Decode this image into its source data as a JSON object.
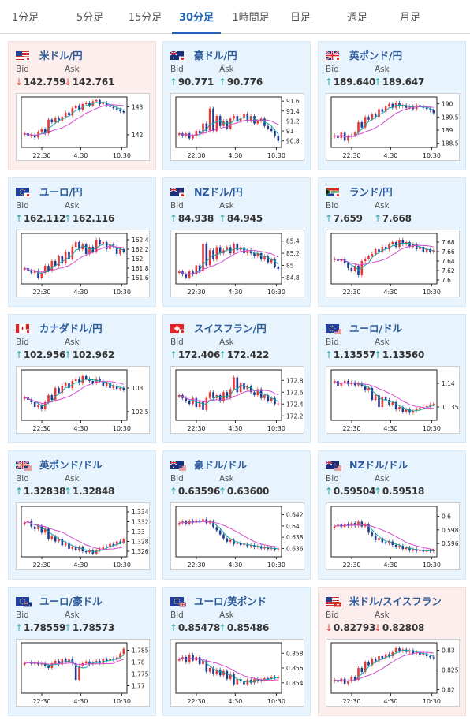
{
  "tabs": [
    {
      "label": "1分足",
      "active": false
    },
    {
      "label": "5分足",
      "active": false
    },
    {
      "label": "15分足",
      "active": false
    },
    {
      "label": "30分足",
      "active": true
    },
    {
      "label": "1時間足",
      "active": false
    },
    {
      "label": "日足",
      "active": false
    },
    {
      "label": "週足",
      "active": false
    },
    {
      "label": "月足",
      "active": false
    }
  ],
  "labels": {
    "bid": "Bid",
    "ask": "Ask",
    "up_arrow": "↑",
    "down_arrow": "↓"
  },
  "colors": {
    "up_candle": "#e53935",
    "down_candle": "#1f3a93",
    "ma_short": "#19a7a7",
    "ma_long": "#d24fd0",
    "tab_active": "#1f63b6",
    "card_up_bg": "#e8f4fd",
    "card_down_bg": "#fdeeee"
  },
  "x_ticks": [
    "22:30",
    "4:30",
    "10:30"
  ],
  "pairs": [
    {
      "name": "米ドル/円",
      "flags": [
        "us",
        "jp"
      ],
      "direction": "down",
      "bid": "142.759",
      "ask": "142.761",
      "y_ticks": [
        "143",
        "142"
      ],
      "ylim": [
        141.6,
        143.3
      ],
      "series": [
        142.05,
        141.95,
        142.0,
        141.9,
        142.1,
        142.2,
        142.05,
        142.55,
        142.45,
        142.6,
        142.5,
        142.65,
        142.8,
        142.7,
        142.95,
        143.05,
        142.9,
        143.1,
        143.15,
        143.05,
        143.2,
        143.25,
        143.1,
        143.15,
        143.05,
        143.0,
        142.95,
        142.9,
        142.85,
        142.8
      ]
    },
    {
      "name": "豪ドル/円",
      "flags": [
        "au",
        "jp"
      ],
      "direction": "up",
      "bid": "90.771",
      "ask": "90.776",
      "y_ticks": [
        "91.6",
        "91.4",
        "91.2",
        "91",
        "90.8"
      ],
      "ylim": [
        90.7,
        91.65
      ],
      "series": [
        90.95,
        90.9,
        90.95,
        90.85,
        90.9,
        91.0,
        90.95,
        91.15,
        91.0,
        91.45,
        91.0,
        91.3,
        91.1,
        91.2,
        91.05,
        91.25,
        91.3,
        91.2,
        91.25,
        91.35,
        91.2,
        91.3,
        91.15,
        91.2,
        91.25,
        91.1,
        91.05,
        91.0,
        90.9,
        90.8
      ]
    },
    {
      "name": "英ポンド/円",
      "flags": [
        "gb",
        "jp"
      ],
      "direction": "up",
      "bid": "189.640",
      "ask": "189.647",
      "y_ticks": [
        "190",
        "189.5",
        "189",
        "188.5"
      ],
      "ylim": [
        188.4,
        190.2
      ],
      "series": [
        188.8,
        188.7,
        188.9,
        188.6,
        188.75,
        188.8,
        188.9,
        189.3,
        189.1,
        189.5,
        189.4,
        189.6,
        189.5,
        189.8,
        189.7,
        189.9,
        190.0,
        189.85,
        190.05,
        189.9,
        189.95,
        189.85,
        189.9,
        189.8,
        189.95,
        189.9,
        189.85,
        189.8,
        189.75,
        189.65
      ]
    },
    {
      "name": "ユーロ/円",
      "flags": [
        "eu",
        "jp"
      ],
      "direction": "up",
      "bid": "162.112",
      "ask": "162.116",
      "y_ticks": [
        "162.4",
        "162.2",
        "162",
        "161.8",
        "161.6"
      ],
      "ylim": [
        161.5,
        162.5
      ],
      "series": [
        161.8,
        161.75,
        161.7,
        161.75,
        161.6,
        161.7,
        161.85,
        161.75,
        161.95,
        161.85,
        162.05,
        161.9,
        162.15,
        162.0,
        162.25,
        162.35,
        162.2,
        162.3,
        162.1,
        162.25,
        162.15,
        162.4,
        162.3,
        162.35,
        162.2,
        162.3,
        162.25,
        162.1,
        162.2,
        162.15
      ]
    },
    {
      "name": "NZドル/円",
      "flags": [
        "nz",
        "jp"
      ],
      "direction": "up",
      "bid": "84.938",
      "ask": "84.945",
      "y_ticks": [
        "85.4",
        "85.2",
        "85",
        "84.8"
      ],
      "ylim": [
        84.72,
        85.5
      ],
      "series": [
        84.9,
        84.85,
        84.8,
        84.9,
        84.85,
        85.0,
        84.9,
        85.35,
        85.0,
        85.25,
        85.1,
        85.3,
        85.2,
        85.25,
        85.3,
        85.2,
        85.35,
        85.25,
        85.3,
        85.2,
        85.25,
        85.2,
        85.15,
        85.2,
        85.1,
        85.15,
        85.05,
        85.1,
        84.98,
        84.94
      ]
    },
    {
      "name": "ランド/円",
      "flags": [
        "za",
        "jp"
      ],
      "direction": "up",
      "bid": "7.659",
      "ask": "7.668",
      "y_ticks": [
        "7.68",
        "7.66",
        "7.64",
        "7.62",
        "7.6"
      ],
      "ylim": [
        7.595,
        7.695
      ],
      "series": [
        7.645,
        7.64,
        7.645,
        7.635,
        7.625,
        7.62,
        7.63,
        7.61,
        7.64,
        7.645,
        7.65,
        7.655,
        7.665,
        7.66,
        7.67,
        7.665,
        7.675,
        7.68,
        7.67,
        7.685,
        7.675,
        7.68,
        7.67,
        7.675,
        7.665,
        7.67,
        7.66,
        7.665,
        7.66,
        7.662
      ]
    },
    {
      "name": "カナダドル/円",
      "flags": [
        "ca",
        "jp"
      ],
      "direction": "up",
      "bid": "102.956",
      "ask": "102.962",
      "y_ticks": [
        "103",
        "102.5"
      ],
      "ylim": [
        102.35,
        103.35
      ],
      "series": [
        102.8,
        102.75,
        102.7,
        102.6,
        102.65,
        102.55,
        102.7,
        102.85,
        102.75,
        103.0,
        102.9,
        103.05,
        103.1,
        103.0,
        103.15,
        103.2,
        103.1,
        103.25,
        103.2,
        103.15,
        103.1,
        103.2,
        103.15,
        103.05,
        103.1,
        103.0,
        103.05,
        102.98,
        103.0,
        102.96
      ]
    },
    {
      "name": "スイスフラン/円",
      "flags": [
        "ch",
        "jp"
      ],
      "direction": "up",
      "bid": "172.406",
      "ask": "172.422",
      "y_ticks": [
        "172.8",
        "172.6",
        "172.4",
        "172.2"
      ],
      "ylim": [
        172.15,
        172.95
      ],
      "series": [
        172.55,
        172.5,
        172.45,
        172.4,
        172.5,
        172.35,
        172.45,
        172.3,
        172.5,
        172.6,
        172.5,
        172.55,
        172.45,
        172.6,
        172.5,
        172.65,
        172.85,
        172.6,
        172.75,
        172.65,
        172.7,
        172.6,
        172.55,
        172.65,
        172.5,
        172.55,
        172.45,
        172.5,
        172.4,
        172.41
      ]
    },
    {
      "name": "ユーロ/ドル",
      "flags": [
        "eu",
        "us"
      ],
      "direction": "up",
      "bid": "1.13557",
      "ask": "1.13560",
      "y_ticks": [
        "1.14",
        "1.135"
      ],
      "ylim": [
        1.1325,
        1.1425
      ],
      "series": [
        1.1405,
        1.1395,
        1.14,
        1.1405,
        1.1398,
        1.1402,
        1.1396,
        1.14,
        1.1395,
        1.1385,
        1.139,
        1.1365,
        1.1375,
        1.135,
        1.137,
        1.1365,
        1.1355,
        1.136,
        1.1345,
        1.135,
        1.134,
        1.1345,
        1.1338,
        1.1342,
        1.1345,
        1.1348,
        1.135,
        1.1352,
        1.1355,
        1.1356
      ]
    },
    {
      "name": "英ポンド/ドル",
      "flags": [
        "gb",
        "us"
      ],
      "direction": "up",
      "bid": "1.32838",
      "ask": "1.32848",
      "y_ticks": [
        "1.334",
        "1.332",
        "1.33",
        "1.328",
        "1.326"
      ],
      "ylim": [
        1.3252,
        1.3348
      ],
      "series": [
        1.3318,
        1.3322,
        1.331,
        1.3305,
        1.3312,
        1.3298,
        1.3306,
        1.3285,
        1.329,
        1.328,
        1.3285,
        1.3272,
        1.3278,
        1.3265,
        1.327,
        1.3262,
        1.3268,
        1.326,
        1.3258,
        1.3262,
        1.3255,
        1.3262,
        1.3265,
        1.327,
        1.3268,
        1.3275,
        1.3272,
        1.328,
        1.3278,
        1.3284
      ]
    },
    {
      "name": "豪ドル/ドル",
      "flags": [
        "au",
        "us"
      ],
      "direction": "up",
      "bid": "0.63596",
      "ask": "0.63600",
      "y_ticks": [
        "0.642",
        "0.64",
        "0.638",
        "0.636"
      ],
      "ylim": [
        0.6348,
        0.6432
      ],
      "series": [
        0.6405,
        0.6408,
        0.6404,
        0.6409,
        0.6406,
        0.641,
        0.6407,
        0.6412,
        0.6405,
        0.6408,
        0.6398,
        0.6392,
        0.6385,
        0.6378,
        0.6372,
        0.6375,
        0.6368,
        0.637,
        0.6366,
        0.6368,
        0.6364,
        0.6366,
        0.6362,
        0.6364,
        0.636,
        0.6362,
        0.6359,
        0.6361,
        0.6358,
        0.636
      ]
    },
    {
      "name": "NZドル/ドル",
      "flags": [
        "nz",
        "us"
      ],
      "direction": "up",
      "bid": "0.59504",
      "ask": "0.59518",
      "y_ticks": [
        "0.6",
        "0.598",
        "0.596"
      ],
      "ylim": [
        0.5943,
        0.6012
      ],
      "series": [
        0.5985,
        0.5988,
        0.5984,
        0.5989,
        0.5986,
        0.599,
        0.5986,
        0.5992,
        0.5985,
        0.5988,
        0.5976,
        0.5972,
        0.5965,
        0.5968,
        0.5962,
        0.596,
        0.5963,
        0.5958,
        0.5955,
        0.5957,
        0.5952,
        0.5954,
        0.595,
        0.5952,
        0.5949,
        0.5951,
        0.5948,
        0.595,
        0.5949,
        0.595
      ]
    },
    {
      "name": "ユーロ/豪ドル",
      "flags": [
        "eu",
        "au"
      ],
      "direction": "up",
      "bid": "1.78559",
      "ask": "1.78573",
      "y_ticks": [
        "1.785",
        "1.78",
        "1.775",
        "1.77"
      ],
      "ylim": [
        1.7675,
        1.7875
      ],
      "series": [
        1.7795,
        1.78,
        1.7792,
        1.7798,
        1.779,
        1.7795,
        1.7785,
        1.7775,
        1.7795,
        1.7805,
        1.779,
        1.7812,
        1.78,
        1.7815,
        1.7795,
        1.7725,
        1.7785,
        1.7795,
        1.7802,
        1.779,
        1.7798,
        1.7805,
        1.7795,
        1.7812,
        1.7805,
        1.7815,
        1.781,
        1.782,
        1.7835,
        1.7856
      ]
    },
    {
      "name": "ユーロ/英ポンド",
      "flags": [
        "eu",
        "gb"
      ],
      "direction": "up",
      "bid": "0.85478",
      "ask": "0.85486",
      "y_ticks": [
        "0.858",
        "0.856",
        "0.854"
      ],
      "ylim": [
        0.8528,
        0.8592
      ],
      "series": [
        0.8572,
        0.8575,
        0.8568,
        0.8578,
        0.857,
        0.8575,
        0.8565,
        0.857,
        0.8555,
        0.856,
        0.8552,
        0.8558,
        0.855,
        0.8556,
        0.8545,
        0.8552,
        0.8538,
        0.8545,
        0.8542,
        0.8538,
        0.8544,
        0.854,
        0.8545,
        0.8542,
        0.8544,
        0.8546,
        0.8545,
        0.8548,
        0.8546,
        0.8548
      ]
    },
    {
      "name": "米ドル/スイスフラン",
      "flags": [
        "us",
        "ch"
      ],
      "direction": "down",
      "bid": "0.82793",
      "ask": "0.82808",
      "y_ticks": [
        "0.83",
        "0.825",
        "0.82"
      ],
      "ylim": [
        0.8195,
        0.8315
      ],
      "series": [
        0.8225,
        0.822,
        0.8228,
        0.8215,
        0.8222,
        0.8232,
        0.8225,
        0.8255,
        0.8245,
        0.827,
        0.8262,
        0.8278,
        0.8272,
        0.8285,
        0.828,
        0.829,
        0.8285,
        0.8295,
        0.8305,
        0.8298,
        0.8302,
        0.8296,
        0.83,
        0.8292,
        0.8296,
        0.8288,
        0.8292,
        0.8285,
        0.8282,
        0.828
      ]
    }
  ]
}
